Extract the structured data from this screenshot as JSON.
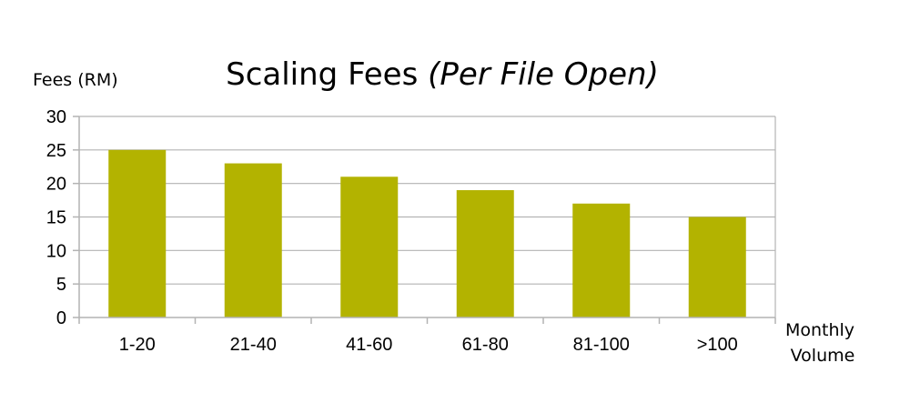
{
  "chart_data": {
    "type": "bar",
    "title": "Scaling Fees",
    "title_emphasis": "(Per File Open)",
    "ylabel": "Fees (RM)",
    "xlabel": [
      "Monthly",
      "Volume"
    ],
    "categories": [
      "1-20",
      "21-40",
      "41-60",
      "61-80",
      "81-100",
      ">100"
    ],
    "values": [
      25,
      23,
      21,
      19,
      17,
      15
    ],
    "ylim": [
      0,
      30
    ],
    "yticks": [
      0,
      5,
      10,
      15,
      20,
      25,
      30
    ],
    "grid": true,
    "legend": "none",
    "bar_color": "#b3b300"
  }
}
